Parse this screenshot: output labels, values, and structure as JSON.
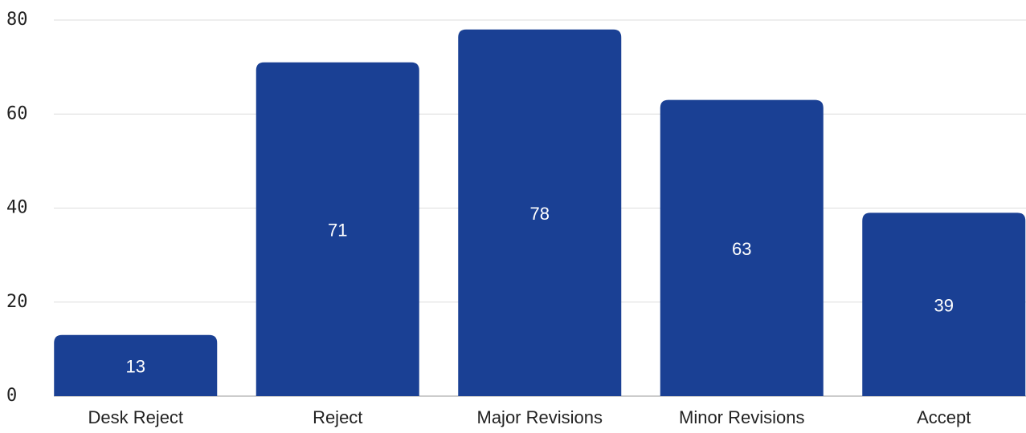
{
  "chart_data": {
    "type": "bar",
    "categories": [
      "Desk Reject",
      "Reject",
      "Major Revisions",
      "Minor Revisions",
      "Accept"
    ],
    "values": [
      13,
      71,
      78,
      63,
      39
    ],
    "color": "#1a4094",
    "ylim": [
      0,
      80
    ],
    "yticks": [
      0,
      20,
      40,
      60,
      80
    ],
    "grid": true
  }
}
